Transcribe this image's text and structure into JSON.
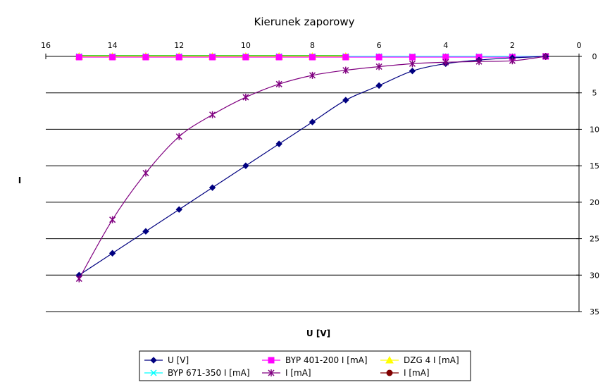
{
  "chart_data": {
    "type": "line",
    "title": "Kierunek zaporowy",
    "xlabel": "U [V]",
    "ylabel": "I",
    "x_reversed": true,
    "y_reversed": true,
    "xlim": [
      16,
      0
    ],
    "ylim": [
      0,
      35
    ],
    "xticks": [
      "16",
      "14",
      "12",
      "10",
      "8",
      "6",
      "4",
      "2",
      "0"
    ],
    "yticks": [
      "0",
      "5",
      "10",
      "15",
      "20",
      "25",
      "30",
      "35"
    ],
    "grid": "horizontal",
    "legend_position": "bottom",
    "series": [
      {
        "name": "U [V]",
        "color": "#000080",
        "marker": "diamond",
        "x": [
          15,
          14,
          13,
          12,
          11,
          10,
          9,
          8,
          7,
          6,
          5,
          4,
          3,
          2,
          1
        ],
        "y": [
          30,
          27,
          24,
          21,
          18,
          15,
          12,
          9,
          6,
          4,
          2,
          1,
          0.5,
          0.2,
          0
        ]
      },
      {
        "name": "BYP 671-350 I [mA]",
        "color": "#00ffff",
        "marker": "x",
        "x": [
          15,
          14,
          13,
          12,
          11,
          10,
          9,
          8,
          7,
          6,
          5,
          4,
          3,
          2,
          1
        ],
        "y": [
          0,
          0,
          0,
          0,
          0,
          0,
          0,
          0,
          0,
          0,
          0,
          0,
          0,
          0,
          0
        ]
      },
      {
        "name": "BYP 401-200 I [mA]",
        "color": "#ff00ff",
        "marker": "square",
        "x": [
          15,
          14,
          13,
          12,
          11,
          10,
          9,
          8,
          7,
          6,
          5,
          4,
          3,
          2,
          1
        ],
        "y": [
          0.1,
          0.1,
          0.1,
          0.1,
          0.1,
          0.1,
          0.1,
          0.1,
          0.1,
          0.1,
          0.1,
          0.1,
          0.1,
          0.1,
          0
        ]
      },
      {
        "name": "I [mA]",
        "color": "#800080",
        "marker": "star",
        "x": [
          15,
          14,
          13,
          12,
          11,
          10,
          9,
          8,
          7,
          6,
          5,
          4,
          3,
          2,
          1
        ],
        "y": [
          30.5,
          22.4,
          16,
          11,
          8,
          5.6,
          3.8,
          2.6,
          1.9,
          1.4,
          1.0,
          0.8,
          0.7,
          0.6,
          0
        ]
      },
      {
        "name": "DZG 4 I [mA]",
        "color": "#ffff00",
        "marker": "triangle",
        "x": [
          15,
          14,
          13,
          12,
          11,
          10,
          9,
          8,
          7
        ],
        "y": [
          0,
          0,
          0,
          0,
          0,
          0,
          0,
          0,
          0
        ]
      },
      {
        "name": "I [mA]",
        "color": "#800000",
        "marker": "circle",
        "x": [],
        "y": []
      }
    ],
    "extra_lines": [
      {
        "color": "#00c000",
        "x": [
          15,
          14,
          13,
          12,
          11,
          10,
          9,
          8,
          7
        ],
        "y": [
          -0.1,
          -0.1,
          -0.1,
          -0.1,
          -0.1,
          -0.1,
          -0.1,
          -0.1,
          -0.1
        ]
      }
    ],
    "legend_order": [
      0,
      2,
      4,
      1,
      3,
      5
    ]
  }
}
